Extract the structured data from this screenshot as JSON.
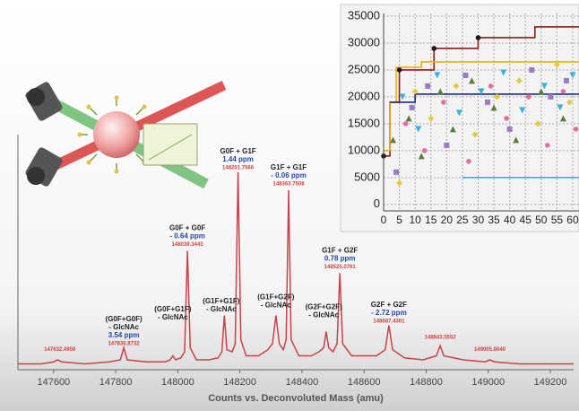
{
  "chart_data": [
    {
      "type": "line",
      "x_label": "Counts vs. Deconvoluted Mass (amu)",
      "x": [
        147485,
        147560,
        147600,
        147613,
        147626,
        147700,
        147780,
        147815,
        147826,
        147837,
        147900,
        147960,
        147975,
        147984,
        147993,
        148010,
        148022,
        148031,
        148040,
        148060,
        148100,
        148130,
        148142,
        148150,
        148158,
        148175,
        148185,
        148194,
        148203,
        148220,
        148260,
        148290,
        148305,
        148316,
        148327,
        148340,
        148349,
        148357,
        148365,
        148390,
        148430,
        148455,
        148470,
        148478,
        148486,
        148500,
        148513,
        148522,
        148531,
        148560,
        148600,
        148640,
        148668,
        148680,
        148692,
        148730,
        148790,
        148833,
        148845,
        148857,
        148920,
        148990,
        149005,
        149020,
        149100,
        149200,
        149275
      ],
      "series": [
        {
          "color": "#c8414b",
          "values": [
            2,
            2,
            3,
            4,
            3,
            2,
            3,
            4,
            10,
            4,
            3,
            3,
            4,
            6,
            4,
            5,
            8,
            58,
            10,
            4,
            4,
            5,
            8,
            26,
            9,
            8,
            12,
            97,
            14,
            6,
            6,
            9,
            12,
            26,
            12,
            9,
            14,
            88,
            14,
            6,
            6,
            8,
            10,
            18,
            10,
            8,
            12,
            47,
            12,
            6,
            6,
            6,
            9,
            21,
            9,
            5,
            4,
            6,
            11,
            6,
            4,
            3,
            4,
            3,
            2,
            2,
            2
          ]
        }
      ],
      "xlim": [
        147485,
        149275
      ],
      "ylim": [
        0,
        100
      ],
      "xticks": [
        147600,
        147800,
        148000,
        148200,
        148400,
        148600,
        148800,
        149000,
        149200
      ],
      "annotations": [
        {
          "x": 147620,
          "y": 6,
          "mass": "147632.4959"
        },
        {
          "x": 147826,
          "y": 9,
          "label": [
            "(G0F+G0F)",
            "- GlcNAc"
          ],
          "ppm": "3.54 ppm",
          "mass": "147836.8732"
        },
        {
          "x": 147984,
          "y": 21,
          "label": [
            "(G0F+G1F)",
            "- GlcNAc"
          ]
        },
        {
          "x": 148031,
          "y": 58,
          "label": [
            "G0F + G0F"
          ],
          "ppm": "- 0.64 ppm",
          "mass": "148039.3443"
        },
        {
          "x": 148140,
          "y": 25,
          "label": [
            "(G1F+G1F)",
            "- GlcNAc"
          ]
        },
        {
          "x": 148194,
          "y": 96,
          "label": [
            "G0F + G1F"
          ],
          "ppm": "1.44 ppm",
          "mass": "148201.7566"
        },
        {
          "x": 148316,
          "y": 27,
          "label": [
            "(G1F+G2F)",
            "- GlcNAc"
          ]
        },
        {
          "x": 148357,
          "y": 88,
          "label": [
            "G1F + G1F"
          ],
          "ppm": "- 0.06 ppm",
          "mass": "148363.7508"
        },
        {
          "x": 148470,
          "y": 22,
          "label": [
            "(G2F+G2F)",
            "- GlcNAc"
          ]
        },
        {
          "x": 148522,
          "y": 47,
          "label": [
            "G1F + G2F"
          ],
          "ppm": "0.78 ppm",
          "mass": "148525.0761"
        },
        {
          "x": 148680,
          "y": 20,
          "label": [
            "G2F + G2F"
          ],
          "ppm": "- 2.72 ppm",
          "mass": "148687.4301"
        },
        {
          "x": 148845,
          "y": 12,
          "mass": "148843.5552"
        },
        {
          "x": 149005,
          "y": 6,
          "mass": "149005.8040"
        }
      ]
    },
    {
      "type": "scatter",
      "grid": true,
      "xlim": [
        0,
        62
      ],
      "ylim": [
        -1200,
        35500
      ],
      "xticks": [
        0,
        5,
        10,
        15,
        20,
        25,
        30,
        35,
        40,
        45,
        50,
        55,
        60
      ],
      "yticks": [
        0,
        5000,
        10000,
        15000,
        20000,
        25000,
        30000,
        35000
      ],
      "series": [
        {
          "marker": "triangle",
          "color": "#5a7d3a",
          "x": [
            3,
            8,
            12,
            18,
            22,
            28,
            35,
            42,
            50,
            57
          ],
          "values": [
            12000,
            16000,
            9000,
            21000,
            14000,
            23000,
            18000,
            12000,
            21000,
            16000
          ]
        },
        {
          "marker": "square",
          "color": "#9a7cc0",
          "x": [
            4,
            9,
            14,
            20,
            26,
            33,
            40,
            47,
            53,
            58
          ],
          "values": [
            6000,
            18000,
            22000,
            11000,
            24000,
            19000,
            14000,
            25000,
            20000,
            23000
          ]
        },
        {
          "marker": "triangle-down",
          "color": "#3ab0d8",
          "x": [
            6,
            11,
            17,
            24,
            31,
            38,
            44,
            51,
            56,
            60
          ],
          "values": [
            20000,
            14000,
            24000,
            17000,
            21000,
            24500,
            17500,
            22000,
            18000,
            24000
          ]
        },
        {
          "marker": "diamond",
          "color": "#e0cc3c",
          "x": [
            5,
            10,
            15,
            23,
            29,
            36,
            43,
            49,
            55,
            59
          ],
          "values": [
            4000,
            21000,
            16000,
            22000,
            13000,
            20000,
            23000,
            15000,
            26000,
            19000
          ]
        },
        {
          "marker": "circle",
          "color": "#e070a0",
          "x": [
            7,
            13,
            19,
            27,
            34,
            39,
            46,
            52,
            57,
            61
          ],
          "values": [
            15000,
            10000,
            19000,
            8000,
            22000,
            16000,
            20000,
            11000,
            21000,
            14000
          ]
        },
        {
          "marker": "step",
          "color": "#8b1a1a",
          "x": [
            0,
            2,
            2,
            5,
            5,
            16,
            16,
            30,
            30,
            48,
            48,
            62
          ],
          "values": [
            9000,
            9000,
            19000,
            19000,
            25000,
            25000,
            29000,
            29000,
            31000,
            31000,
            33000,
            33000
          ]
        },
        {
          "marker": "step",
          "color": "#f0b000",
          "x": [
            0,
            2,
            2,
            4,
            4,
            12,
            12,
            62
          ],
          "values": [
            10000,
            10000,
            19000,
            19000,
            25500,
            25500,
            26500,
            26500
          ]
        },
        {
          "marker": "step",
          "color": "#1c2a7a",
          "x": [
            2,
            10,
            10,
            62
          ],
          "values": [
            19000,
            19000,
            20500,
            20500
          ]
        },
        {
          "marker": "step",
          "color": "#2ab8d8",
          "x": [
            25,
            62
          ],
          "values": [
            5000,
            5000
          ]
        },
        {
          "marker": "circle",
          "color": "#1a1a1a",
          "x": [
            0,
            5,
            16,
            30
          ],
          "values": [
            9000,
            25000,
            29000,
            31000
          ]
        }
      ]
    }
  ]
}
